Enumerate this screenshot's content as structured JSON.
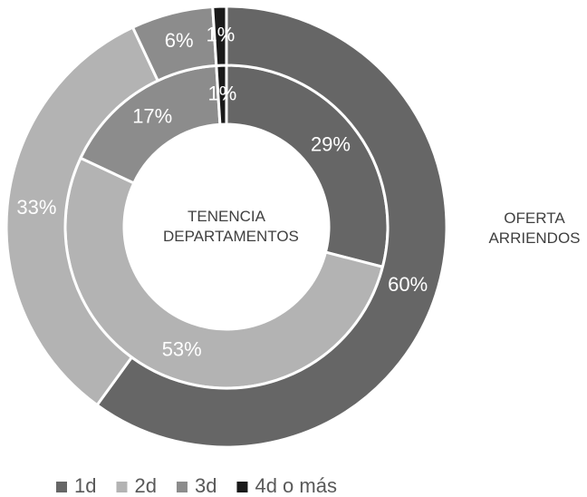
{
  "chart_data": {
    "type": "donut",
    "categories": [
      "1d",
      "2d",
      "3d",
      "4d o más"
    ],
    "colors": [
      "#666666",
      "#b3b3b3",
      "#8c8c8c",
      "#1a1a1a"
    ],
    "series": [
      {
        "name": "TENENCIA DEPARTAMENTOS",
        "ring": "inner",
        "values": [
          29,
          53,
          17,
          1
        ],
        "value_labels": [
          "29%",
          "53%",
          "17%",
          "1%"
        ]
      },
      {
        "name": "OFERTA ARRIENDOS",
        "ring": "outer",
        "values": [
          60,
          33,
          6,
          1
        ],
        "value_labels": [
          "60%",
          "33%",
          "6%",
          "1%"
        ]
      }
    ],
    "legend": "bottom"
  }
}
